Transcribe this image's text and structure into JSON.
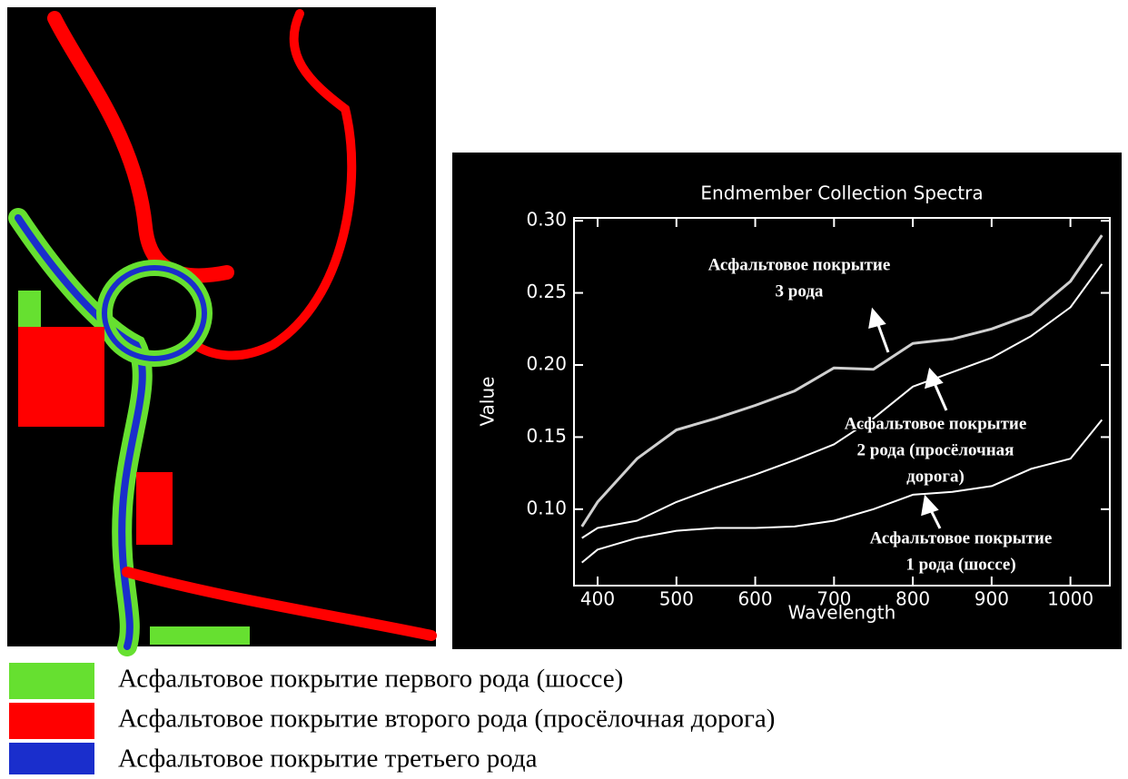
{
  "chart_data": {
    "type": "line",
    "title": "Endmember Collection Spectra",
    "x_label": "Wavelength",
    "y_label": "Value",
    "x": [
      380,
      400,
      450,
      500,
      550,
      600,
      650,
      700,
      750,
      800,
      850,
      900,
      950,
      1000,
      1040
    ],
    "series": [
      {
        "color": "#d0d0d0",
        "values": [
          0.088,
          0.105,
          0.135,
          0.155,
          0.163,
          0.172,
          0.182,
          0.198,
          0.197,
          0.215,
          0.218,
          0.225,
          0.235,
          0.258,
          0.29
        ]
      },
      {
        "color": "#ffffff",
        "values": [
          0.08,
          0.087,
          0.092,
          0.105,
          0.115,
          0.124,
          0.134,
          0.145,
          0.163,
          0.185,
          0.195,
          0.205,
          0.22,
          0.24,
          0.27
        ]
      },
      {
        "color": "#ffffff",
        "values": [
          0.063,
          0.072,
          0.08,
          0.085,
          0.087,
          0.087,
          0.088,
          0.092,
          0.1,
          0.11,
          0.112,
          0.116,
          0.128,
          0.135,
          0.162
        ]
      }
    ],
    "xlim": [
      370,
      1050
    ],
    "xticks": [
      400,
      500,
      600,
      700,
      800,
      900,
      1000
    ],
    "ylim": [
      0.047,
      0.302
    ],
    "yticks": [
      {
        "value": 0.1,
        "label": "0.10"
      },
      0.15,
      {
        "value": 0.2,
        "label": "0.20"
      },
      0.25,
      {
        "value": 0.3,
        "label": "0.30"
      }
    ],
    "annotations": [
      [
        "Асфальтовое покрытие",
        "3 рода"
      ],
      [
        "Асфальтовое покрытие",
        "2 рода (просёлочная",
        "дорога)"
      ],
      [
        "Асфальтовое покрытие",
        "1 рода (шоссе)"
      ]
    ]
  },
  "legend": [
    {
      "label": "Асфальтовое покрытие первого рода (шоссе)",
      "color": "#66e030"
    },
    {
      "label": "Асфальтовое покрытие второго рода (просёлочная дорога)",
      "color": "#ff0000"
    },
    {
      "label": "Асфальтовое покрытие третьего рода",
      "color": "#1a2ecc"
    }
  ]
}
